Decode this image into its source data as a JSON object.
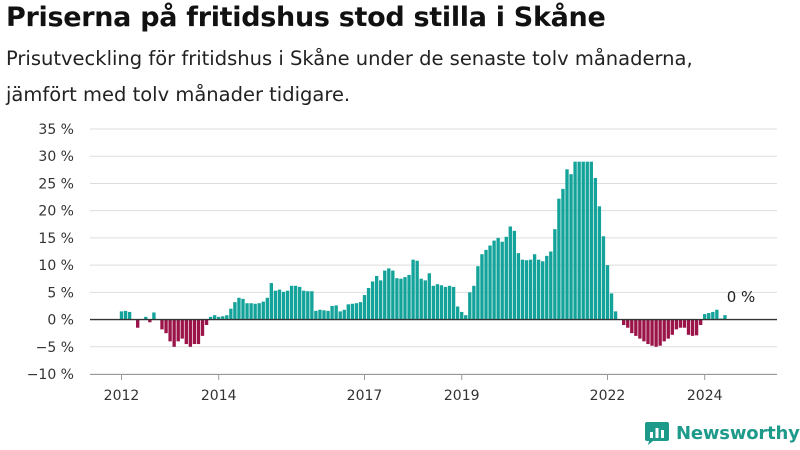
{
  "title": "Priserna på fritidshus stod stilla i Skåne",
  "subtitle_line1": "Prisutveckling för fritidshus i Skåne under de senaste tolv månaderna,",
  "subtitle_line2": "jämfört med tolv månader tidigare.",
  "brand": {
    "name": "Newsworthy",
    "icon": "newsworthy-logo-icon"
  },
  "colors": {
    "positive": "#14a39a",
    "negative": "#9b1449",
    "gridline": "#dddddd",
    "zero_line": "#333333"
  },
  "chart_data": {
    "type": "bar",
    "title": "Priserna på fritidshus stod stilla i Skåne",
    "subtitle": "Prisutveckling för fritidshus i Skåne under de senaste tolv månaderna, jämfört med tolv månader tidigare.",
    "xlabel": "",
    "ylabel": "",
    "unit": "%",
    "ylim": [
      -10,
      35
    ],
    "y_ticks": [
      35,
      30,
      25,
      20,
      15,
      10,
      5,
      0,
      -5,
      -10
    ],
    "y_tick_labels": [
      "35 %",
      "30 %",
      "25 %",
      "20 %",
      "15 %",
      "10 %",
      "5 %",
      "0 %",
      "−5 %",
      "−10 %"
    ],
    "x_ticks": [
      "2012",
      "2014",
      "2017",
      "2019",
      "2022",
      "2024"
    ],
    "x_tick_positions": [
      "2012-01",
      "2014-01",
      "2017-01",
      "2019-01",
      "2022-01",
      "2024-01"
    ],
    "grid": true,
    "legend": "none",
    "start": "2012-01",
    "frequency": "monthly",
    "annotation": {
      "text": "0 %",
      "date": "2024-08"
    },
    "values": [
      1.5,
      1.6,
      1.4,
      0,
      -1.5,
      0,
      0.5,
      -0.5,
      1.3,
      0,
      -1.8,
      -2.5,
      -4,
      -5,
      -4,
      -3.5,
      -4.5,
      -5,
      -4.5,
      -4.5,
      -3,
      -1,
      0.5,
      0.8,
      0.5,
      0.6,
      0.8,
      2,
      3.2,
      4,
      3.8,
      3,
      3,
      2.9,
      3,
      3.3,
      4,
      6.7,
      5.3,
      5.5,
      5.1,
      5.3,
      6.2,
      6.2,
      6,
      5.3,
      5.2,
      5.2,
      1.6,
      1.8,
      1.7,
      1.6,
      2.5,
      2.6,
      1.5,
      1.8,
      2.8,
      2.9,
      3,
      3.2,
      4.5,
      5.8,
      7,
      8,
      7.2,
      9,
      9.4,
      9,
      7.6,
      7.5,
      7.8,
      8.2,
      11,
      10.8,
      7.5,
      7.2,
      8.5,
      6.2,
      6.5,
      6.3,
      6,
      6.2,
      6,
      2.4,
      1.4,
      0.8,
      5,
      6.2,
      9.8,
      12,
      12.8,
      13.6,
      14.5,
      15,
      14.3,
      15.2,
      17.1,
      16.3,
      12.2,
      11,
      10.9,
      11,
      12,
      11,
      10.7,
      11.7,
      12.5,
      16.6,
      22.2,
      24,
      27.6,
      26.7,
      29,
      29,
      29,
      29,
      29,
      26,
      20.8,
      15.3,
      10,
      4.8,
      1.5,
      0,
      -1,
      -1.5,
      -2.5,
      -3,
      -3.5,
      -4,
      -4.5,
      -4.8,
      -5,
      -4.8,
      -4,
      -3.5,
      -2.8,
      -1.8,
      -1.5,
      -1.5,
      -2.8,
      -3,
      -2.9,
      -1,
      1,
      1.2,
      1.4,
      1.8,
      0.2,
      0.8
    ]
  }
}
